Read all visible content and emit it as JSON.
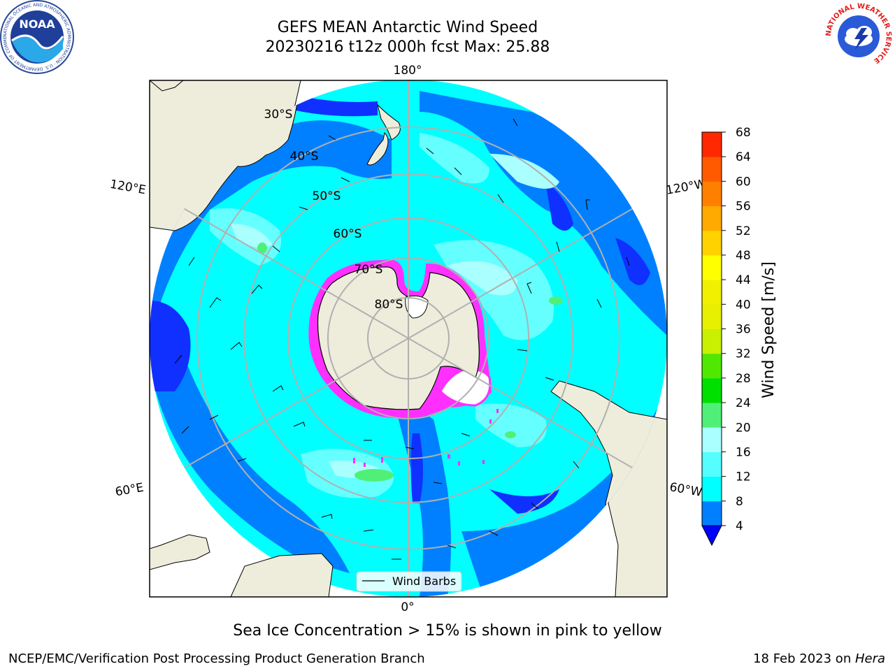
{
  "header": {
    "title_line1": "GEFS MEAN Antarctic Wind Speed",
    "title_line2": "20230216 t12z 000h fcst   Max: 25.88"
  },
  "logos": {
    "left": {
      "name": "noaa-logo",
      "text": "NOAA",
      "ring_text": "NATIONAL OCEANIC AND ATMOSPHERIC ADMINISTRATION · U.S. DEPARTMENT OF COMMERCE"
    },
    "right": {
      "name": "nws-logo",
      "ring_text": "NATIONAL WEATHER SERVICE"
    }
  },
  "map": {
    "projection": "south polar stereographic",
    "longitude_labels": [
      "180°",
      "120°E",
      "120°W",
      "60°E",
      "60°W",
      "0°"
    ],
    "latitude_labels": [
      "30°S",
      "40°S",
      "50°S",
      "60°S",
      "70°S",
      "80°S"
    ],
    "legend_label": "Wind Barbs",
    "colors": {
      "land": "#eeeddc",
      "wind_4_8": "#0080ff",
      "wind_8_12": "#00ffff",
      "wind_12_16": "#66ffff",
      "wind_16_20": "#aaffff",
      "wind_20_24": "#50f078",
      "deep": "#1030ff",
      "sea_ice": "#ff20ff",
      "grid": "#b0b0b0"
    }
  },
  "colorbar": {
    "label": "Wind Speed [m/s]",
    "ticks": [
      "4",
      "8",
      "12",
      "16",
      "20",
      "24",
      "28",
      "32",
      "36",
      "40",
      "44",
      "48",
      "52",
      "56",
      "60",
      "64",
      "68"
    ],
    "colors": [
      "#0080ff",
      "#00ffff",
      "#55ffff",
      "#aaffff",
      "#50f078",
      "#00e000",
      "#50e800",
      "#c8f000",
      "#e6f000",
      "#f0f000",
      "#ffff00",
      "#ffd200",
      "#ffaa00",
      "#ff8000",
      "#ff5a00",
      "#ff2800",
      "#ff0000"
    ],
    "extend_color": "#0000ff"
  },
  "chart_data": {
    "type": "heatmap",
    "title": "GEFS MEAN Antarctic Wind Speed",
    "subtitle": "20230216 t12z 000h fcst   Max: 25.88",
    "colorbar_label": "Wind Speed [m/s]",
    "colorbar_range": [
      4,
      68
    ],
    "colorbar_step": 4,
    "max_value": 25.88,
    "annotation": "Sea Ice Concentration > 15% is shown in pink to yellow",
    "legend": [
      "Wind Barbs"
    ]
  },
  "footer": {
    "note": "Sea Ice Concentration > 15% is shown in pink to yellow",
    "credit_left": "NCEP/EMC/Verification Post Processing Product Generation Branch",
    "credit_right_date": "18 Feb 2023 on ",
    "credit_right_host": "Hera"
  }
}
